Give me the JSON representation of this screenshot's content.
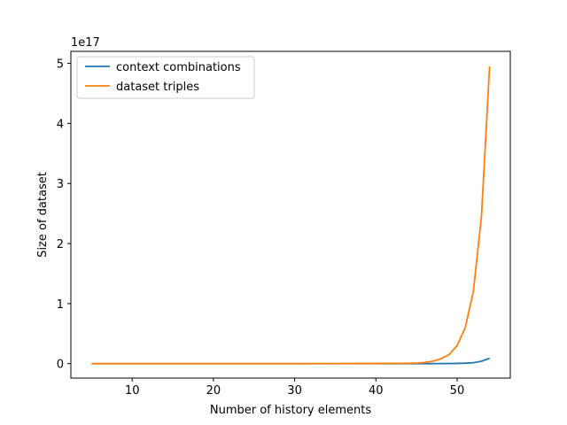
{
  "chart_data": {
    "type": "line",
    "xlabel": "Number of history elements",
    "ylabel": "Size of dataset",
    "y_offset_text": "1e17",
    "xlim": [
      2.45,
      56.55
    ],
    "ylim": [
      -0.24,
      5.2
    ],
    "x_ticks": [
      10,
      20,
      30,
      40,
      50
    ],
    "y_ticks": [
      0,
      1,
      2,
      3,
      4,
      5
    ],
    "x_tick_labels": [
      "10",
      "20",
      "30",
      "40",
      "50"
    ],
    "y_tick_labels": [
      "0",
      "1",
      "2",
      "3",
      "4",
      "5"
    ],
    "legend_position": "upper-left",
    "x": [
      5,
      10,
      20,
      30,
      40,
      44,
      45,
      46,
      47,
      48,
      49,
      50,
      51,
      52,
      53,
      54
    ],
    "series": [
      {
        "name": "context combinations",
        "color": "#1f77b4",
        "values": [
          0,
          0,
          0,
          0,
          0,
          0,
          0,
          0,
          0.0005,
          0.001,
          0.002,
          0.004,
          0.008,
          0.016,
          0.04,
          0.09
        ]
      },
      {
        "name": "dataset triples",
        "color": "#ff7f0e",
        "values": [
          0,
          0,
          0,
          0,
          0.002,
          0.006,
          0.01,
          0.02,
          0.04,
          0.08,
          0.15,
          0.3,
          0.6,
          1.2,
          2.45,
          4.95
        ]
      }
    ]
  }
}
